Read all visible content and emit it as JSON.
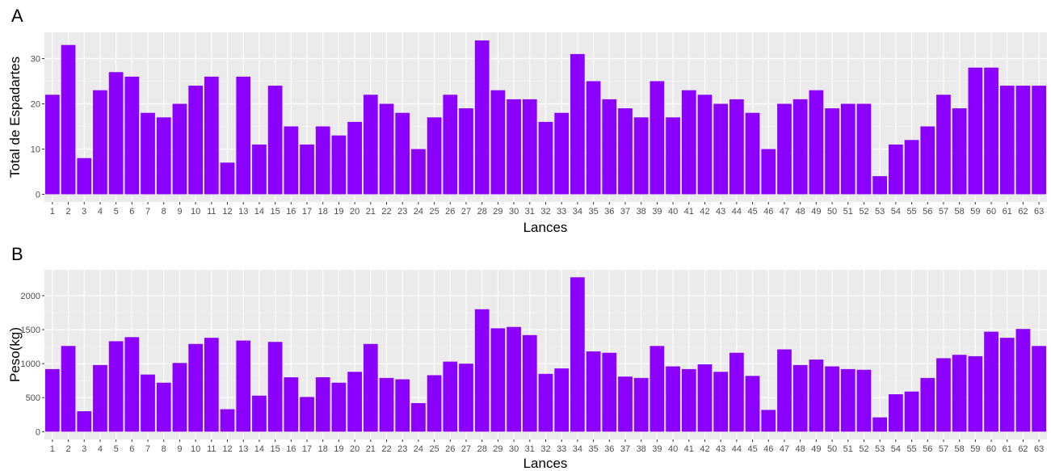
{
  "colors": {
    "bar": "#8B00FF",
    "panel_background": "#EBEBEB",
    "grid_major": "#FFFFFF",
    "grid_minor": "#F5F5F5",
    "tick_text": "#4D4D4D",
    "text": "#000000"
  },
  "chart_data": [
    {
      "type": "bar",
      "panel_label": "A",
      "xlabel": "Lances",
      "ylabel": "Total de Espadartes",
      "ylim": [
        -1.7,
        35.8
      ],
      "yticks": [
        0,
        10,
        20,
        30
      ],
      "grid": true,
      "categories": [
        "1",
        "2",
        "3",
        "4",
        "5",
        "6",
        "7",
        "8",
        "9",
        "10",
        "11",
        "12",
        "13",
        "14",
        "15",
        "16",
        "17",
        "18",
        "19",
        "20",
        "21",
        "22",
        "23",
        "24",
        "25",
        "26",
        "27",
        "28",
        "29",
        "30",
        "31",
        "32",
        "33",
        "34",
        "35",
        "36",
        "37",
        "38",
        "39",
        "40",
        "41",
        "42",
        "43",
        "44",
        "45",
        "46",
        "47",
        "48",
        "49",
        "50",
        "51",
        "52",
        "53",
        "54",
        "55",
        "56",
        "57",
        "58",
        "59",
        "60",
        "61",
        "62",
        "63"
      ],
      "values": [
        22,
        33,
        8,
        23,
        27,
        26,
        18,
        17,
        20,
        24,
        26,
        7,
        26,
        11,
        24,
        15,
        11,
        15,
        13,
        16,
        22,
        20,
        18,
        10,
        17,
        22,
        19,
        34,
        23,
        21,
        21,
        16,
        18,
        31,
        25,
        21,
        19,
        17,
        25,
        17,
        23,
        22,
        20,
        21,
        18,
        10,
        20,
        21,
        23,
        19,
        20,
        20,
        4,
        11,
        12,
        15,
        22,
        19,
        28,
        28,
        24,
        24,
        24
      ]
    },
    {
      "type": "bar",
      "panel_label": "B",
      "xlabel": "Lances",
      "ylabel": "Peso(kg)",
      "ylim": [
        -115,
        2380
      ],
      "yticks": [
        0,
        500,
        1000,
        1500,
        2000
      ],
      "grid": true,
      "categories": [
        "1",
        "2",
        "3",
        "4",
        "5",
        "6",
        "7",
        "8",
        "9",
        "10",
        "11",
        "12",
        "13",
        "14",
        "15",
        "16",
        "17",
        "18",
        "19",
        "20",
        "21",
        "22",
        "23",
        "24",
        "25",
        "26",
        "27",
        "28",
        "29",
        "30",
        "31",
        "32",
        "33",
        "34",
        "35",
        "36",
        "37",
        "38",
        "39",
        "40",
        "41",
        "42",
        "43",
        "44",
        "45",
        "46",
        "47",
        "48",
        "49",
        "50",
        "51",
        "52",
        "53",
        "54",
        "55",
        "56",
        "57",
        "58",
        "59",
        "60",
        "61",
        "62",
        "63"
      ],
      "values": [
        920,
        1260,
        300,
        980,
        1330,
        1390,
        840,
        720,
        1010,
        1290,
        1380,
        330,
        1340,
        530,
        1320,
        800,
        510,
        800,
        720,
        880,
        1290,
        790,
        770,
        420,
        830,
        1030,
        1000,
        1800,
        1520,
        1540,
        1420,
        850,
        930,
        2270,
        1180,
        1160,
        810,
        790,
        1260,
        960,
        920,
        990,
        880,
        1160,
        820,
        320,
        1210,
        980,
        1060,
        960,
        920,
        910,
        210,
        550,
        590,
        790,
        1080,
        1130,
        1110,
        1470,
        1380,
        1510,
        1260
      ]
    }
  ]
}
